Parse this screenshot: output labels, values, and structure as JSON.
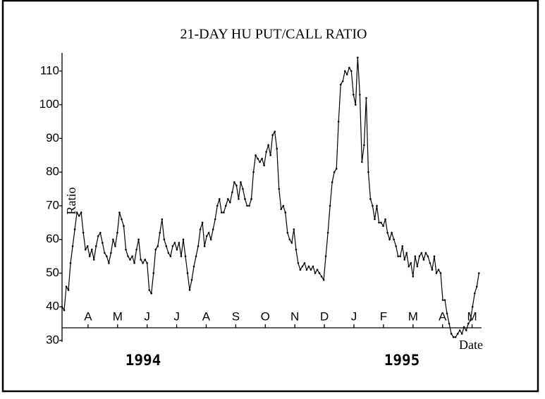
{
  "chart_data": {
    "type": "line",
    "title": "21-DAY HU PUT/CALL RATIO",
    "y_label": "Ratio",
    "x_label": "Date",
    "annotations": [
      "1994",
      "1995"
    ],
    "xlim": [
      2.12,
      16.32
    ],
    "ylim": [
      30,
      115.4
    ],
    "yticks": [
      30,
      40,
      50,
      60,
      70,
      80,
      90,
      100,
      110
    ],
    "xticks": [
      {
        "value": 3,
        "label": "A"
      },
      {
        "value": 4,
        "label": "M"
      },
      {
        "value": 5,
        "label": "J"
      },
      {
        "value": 6,
        "label": "J"
      },
      {
        "value": 7,
        "label": "A"
      },
      {
        "value": 8,
        "label": "S"
      },
      {
        "value": 9,
        "label": "O"
      },
      {
        "value": 10,
        "label": "N"
      },
      {
        "value": 11,
        "label": "D"
      },
      {
        "value": 12,
        "label": "J"
      },
      {
        "value": 13,
        "label": "F"
      },
      {
        "value": 14,
        "label": "M"
      },
      {
        "value": 15,
        "label": "A"
      },
      {
        "value": 16,
        "label": "M"
      }
    ],
    "color": "#000000",
    "x": [
      2.12,
      2.192,
      2.264,
      2.336,
      2.408,
      2.48,
      2.552,
      2.624,
      2.696,
      2.768,
      2.84,
      2.912,
      2.984,
      3.056,
      3.128,
      3.2,
      3.272,
      3.344,
      3.416,
      3.488,
      3.56,
      3.632,
      3.704,
      3.776,
      3.848,
      3.92,
      3.992,
      4.064,
      4.136,
      4.208,
      4.28,
      4.352,
      4.424,
      4.496,
      4.568,
      4.64,
      4.712,
      4.784,
      4.856,
      4.928,
      5,
      5.072,
      5.144,
      5.216,
      5.288,
      5.36,
      5.432,
      5.504,
      5.576,
      5.648,
      5.72,
      5.792,
      5.864,
      5.936,
      6.008,
      6.08,
      6.152,
      6.224,
      6.296,
      6.368,
      6.44,
      6.512,
      6.584,
      6.656,
      6.728,
      6.8,
      6.872,
      6.944,
      7.016,
      7.088,
      7.16,
      7.232,
      7.304,
      7.376,
      7.448,
      7.52,
      7.592,
      7.664,
      7.736,
      7.808,
      7.88,
      7.952,
      8.024,
      8.096,
      8.168,
      8.24,
      8.312,
      8.384,
      8.456,
      8.528,
      8.6,
      8.672,
      8.744,
      8.816,
      8.888,
      8.96,
      9.032,
      9.104,
      9.176,
      9.248,
      9.32,
      9.392,
      9.464,
      9.536,
      9.608,
      9.68,
      9.752,
      9.824,
      9.896,
      9.968,
      10.04,
      10.112,
      10.184,
      10.256,
      10.328,
      10.4,
      10.472,
      10.544,
      10.616,
      10.688,
      10.76,
      10.832,
      10.904,
      10.976,
      11.048,
      11.12,
      11.192,
      11.264,
      11.336,
      11.408,
      11.48,
      11.552,
      11.624,
      11.696,
      11.768,
      11.84,
      11.912,
      11.984,
      12.056,
      12.128,
      12.2,
      12.272,
      12.344,
      12.416,
      12.488,
      12.56,
      12.632,
      12.704,
      12.776,
      12.848,
      12.92,
      12.992,
      13.064,
      13.136,
      13.208,
      13.28,
      13.352,
      13.424,
      13.496,
      13.568,
      13.64,
      13.712,
      13.784,
      13.856,
      13.928,
      14,
      14.072,
      14.144,
      14.216,
      14.288,
      14.36,
      14.432,
      14.504,
      14.576,
      14.648,
      14.72,
      14.792,
      14.864,
      14.936,
      15.008,
      15.08,
      15.152,
      15.224,
      15.296,
      15.368,
      15.44,
      15.512,
      15.584,
      15.656,
      15.728,
      15.8,
      15.872,
      15.944,
      16.016,
      16.088,
      16.16,
      16.232
    ],
    "values": [
      40,
      39,
      46,
      45,
      53,
      58,
      63,
      68,
      67,
      68,
      62,
      57,
      58,
      55,
      57,
      54,
      58,
      61,
      62,
      59,
      56,
      55,
      53,
      56,
      60,
      58,
      62,
      68,
      66,
      64,
      57,
      55,
      54,
      55,
      53,
      57,
      60,
      54,
      53,
      54,
      53,
      45,
      44,
      50,
      57,
      58,
      62,
      66,
      60,
      58,
      56,
      55,
      58,
      59,
      57,
      59,
      55,
      60,
      55,
      50,
      45,
      48,
      52,
      55,
      58,
      63,
      65,
      58,
      61,
      62,
      60,
      63,
      66,
      70,
      72,
      68,
      68,
      70,
      72,
      71,
      74,
      77,
      76,
      72,
      77,
      75,
      72,
      70,
      70,
      72,
      80,
      85,
      84,
      83,
      84,
      82,
      86,
      88,
      85,
      91,
      92,
      87,
      75,
      69,
      70,
      68,
      62,
      60,
      59,
      63,
      57,
      53,
      51,
      52,
      53,
      51,
      52,
      51,
      52,
      50,
      51,
      50,
      49,
      48,
      55,
      62,
      70,
      77,
      80,
      81,
      95,
      106,
      107,
      110,
      109,
      111,
      110,
      103,
      100,
      114,
      103,
      83,
      88,
      102,
      80,
      72,
      70,
      66,
      70,
      65,
      65,
      64,
      66,
      62,
      60,
      62,
      60,
      58,
      55,
      55,
      58,
      54,
      56,
      52,
      53,
      49,
      55,
      52,
      55,
      56,
      54,
      56,
      55,
      53,
      51,
      55,
      50,
      51,
      50,
      42,
      42,
      38,
      35,
      32,
      31,
      31,
      32,
      33,
      32,
      34,
      33,
      35,
      36,
      40,
      44,
      46,
      50
    ]
  }
}
